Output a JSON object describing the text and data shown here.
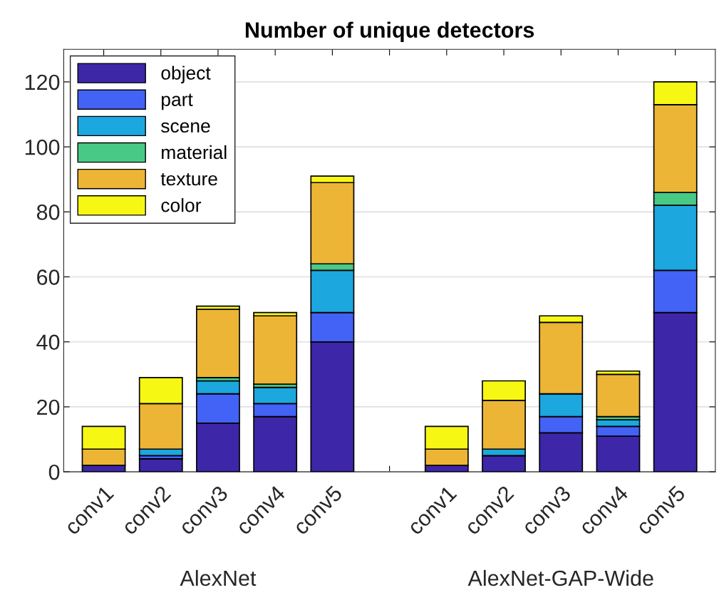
{
  "chart_data": {
    "type": "bar",
    "title": "Number of unique detectors",
    "stacked": true,
    "categories": [
      "conv1",
      "conv2",
      "conv3",
      "conv4",
      "conv5",
      null,
      "conv1",
      "conv2",
      "conv3",
      "conv4",
      "conv5"
    ],
    "series": [
      {
        "name": "object",
        "color": "#3e26a8",
        "values": [
          2,
          4,
          15,
          17,
          40,
          null,
          2,
          5,
          12,
          11,
          49
        ]
      },
      {
        "name": "part",
        "color": "#4362f6",
        "values": [
          0,
          1,
          9,
          4,
          9,
          null,
          0,
          0,
          5,
          3,
          13
        ]
      },
      {
        "name": "scene",
        "color": "#1ca7de",
        "values": [
          0,
          2,
          4,
          5,
          13,
          null,
          0,
          2,
          7,
          2,
          20
        ]
      },
      {
        "name": "material",
        "color": "#48c986",
        "values": [
          0,
          0,
          1,
          1,
          2,
          null,
          0,
          0,
          0,
          1,
          4
        ]
      },
      {
        "name": "texture",
        "color": "#edb535",
        "values": [
          5,
          14,
          21,
          21,
          25,
          null,
          5,
          15,
          22,
          13,
          27
        ]
      },
      {
        "name": "color",
        "color": "#f6f814",
        "values": [
          7,
          8,
          1,
          1,
          2,
          null,
          7,
          6,
          2,
          1,
          7
        ]
      }
    ],
    "ylim": [
      0,
      130
    ],
    "yticks": [
      0,
      20,
      40,
      60,
      80,
      100,
      120
    ],
    "grid": "y",
    "legend": "top left",
    "annotations": [
      "AlexNet",
      "AlexNet-GAP-Wide"
    ]
  }
}
